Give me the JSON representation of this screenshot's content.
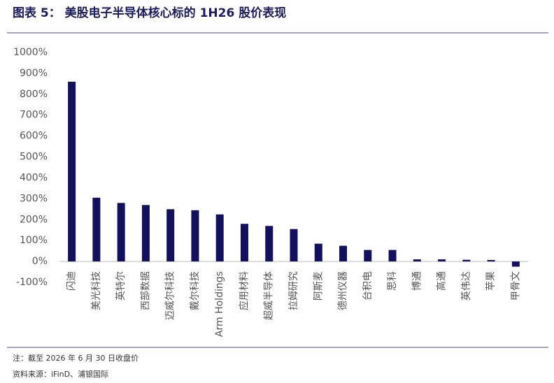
{
  "chart_data": {
    "type": "bar",
    "title": "图表 5： 美股电子半导体核心标的 1H26 股价表现",
    "note": "注：截至 2026 年 6 月 30 日收盘价",
    "source": "资料来源：iFinD、浦银国际",
    "categories": [
      "闪迪",
      "美光科技",
      "英特尔",
      "西部数据",
      "迈威尔科技",
      "戴尔科技",
      "Arm Holdings",
      "应用材料",
      "超威半导体",
      "拉姆研究",
      "阿斯麦",
      "德州仪器",
      "台积电",
      "思科",
      "博通",
      "高通",
      "英伟达",
      "苹果",
      "甲骨文"
    ],
    "values": [
      860,
      305,
      280,
      270,
      250,
      245,
      225,
      180,
      170,
      155,
      85,
      75,
      55,
      55,
      10,
      10,
      8,
      7,
      -25
    ],
    "color": "#13105e",
    "ylim": [
      -100,
      1000
    ],
    "yticks": [
      {
        "value": -100,
        "label": "-100%"
      },
      {
        "value": 0,
        "label": "0%"
      },
      {
        "value": 100,
        "label": "100%"
      },
      {
        "value": 200,
        "label": "200%"
      },
      {
        "value": 300,
        "label": "300%"
      },
      {
        "value": 400,
        "label": "400%"
      },
      {
        "value": 500,
        "label": "500%"
      },
      {
        "value": 600,
        "label": "600%"
      },
      {
        "value": 700,
        "label": "700%"
      },
      {
        "value": 800,
        "label": "800%"
      },
      {
        "value": 900,
        "label": "900%"
      },
      {
        "value": 1000,
        "label": "1000%"
      }
    ],
    "grid": false
  }
}
